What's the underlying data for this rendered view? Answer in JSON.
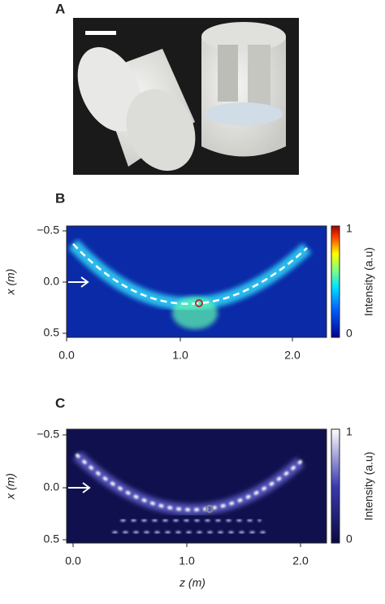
{
  "panels": [
    {
      "label": "A"
    },
    {
      "label": "B",
      "y_axis_label": "x (m)",
      "x_ticks": [
        "0.0",
        "1.0",
        "2.0"
      ],
      "y_ticks": [
        "−0.5",
        "0.0",
        "0.5"
      ],
      "colorbar": {
        "label": "Intensity (a.u)",
        "max": "1",
        "min": "0"
      }
    },
    {
      "label": "C",
      "y_axis_label": "x (m)",
      "x_axis_label": "z (m)",
      "x_ticks": [
        "0.0",
        "1.0",
        "2.0"
      ],
      "y_ticks": [
        "−0.5",
        "0.0",
        "0.5"
      ],
      "colorbar": {
        "label": "Intensity (a.u)",
        "max": "1",
        "min": "0"
      }
    }
  ]
}
